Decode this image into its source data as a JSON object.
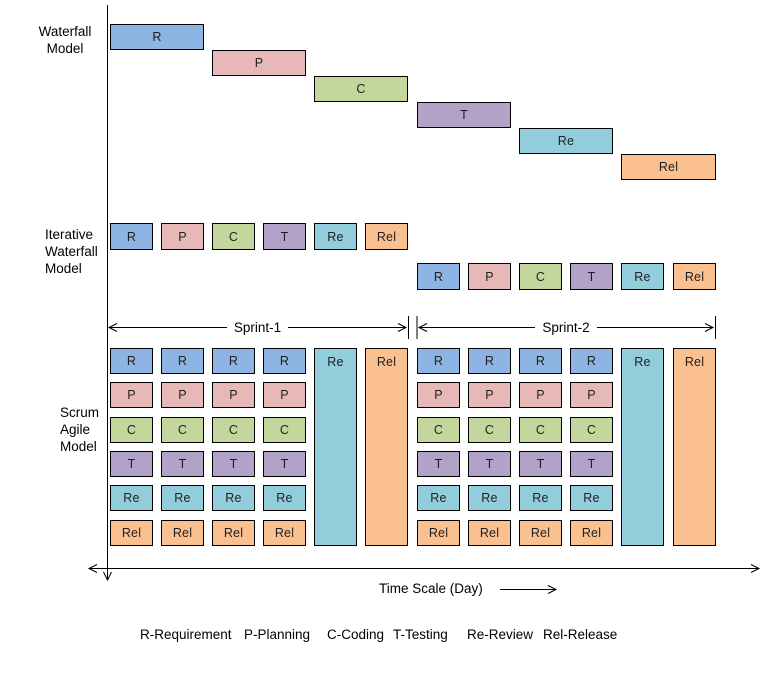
{
  "phase_labels": {
    "R": "R",
    "P": "P",
    "C": "C",
    "T": "T",
    "Re": "Re",
    "Rel": "Rel"
  },
  "phase_colors": {
    "R": "#8DB4E2",
    "P": "#E6B9B8",
    "C": "#C3D69B",
    "T": "#B2A2C7",
    "Re": "#92CDDC",
    "Rel": "#FAC08F"
  },
  "sections": {
    "waterfall": {
      "label_lines": [
        "Waterfall",
        "Model"
      ],
      "blocks": [
        "R",
        "P",
        "C",
        "T",
        "Re",
        "Rel"
      ]
    },
    "iterative": {
      "label_lines": [
        "Iterative",
        "Waterfall",
        "Model"
      ],
      "iterations": [
        [
          "R",
          "P",
          "C",
          "T",
          "Re",
          "Rel"
        ],
        [
          "R",
          "P",
          "C",
          "T",
          "Re",
          "Rel"
        ]
      ]
    },
    "scrum": {
      "label_lines": [
        "Scrum",
        "Agile",
        "Model"
      ],
      "sprints": [
        {
          "daily_columns": 4,
          "column_phases": [
            "R",
            "P",
            "C",
            "T",
            "Re",
            "Rel"
          ],
          "tall_blocks": [
            "Re",
            "Rel"
          ]
        },
        {
          "daily_columns": 4,
          "column_phases": [
            "R",
            "P",
            "C",
            "T",
            "Re",
            "Rel"
          ],
          "tall_blocks": [
            "Re",
            "Rel"
          ]
        }
      ]
    }
  },
  "sprint_labels": [
    "Sprint-1",
    "Sprint-2"
  ],
  "time_axis_label": "Time Scale (Day)",
  "legend": [
    "R-Requirement",
    "P-Planning",
    "C-Coding",
    "T-Testing",
    "Re-Review",
    "Rel-Release"
  ],
  "line_color": "#000000",
  "background_color": "#ffffff"
}
